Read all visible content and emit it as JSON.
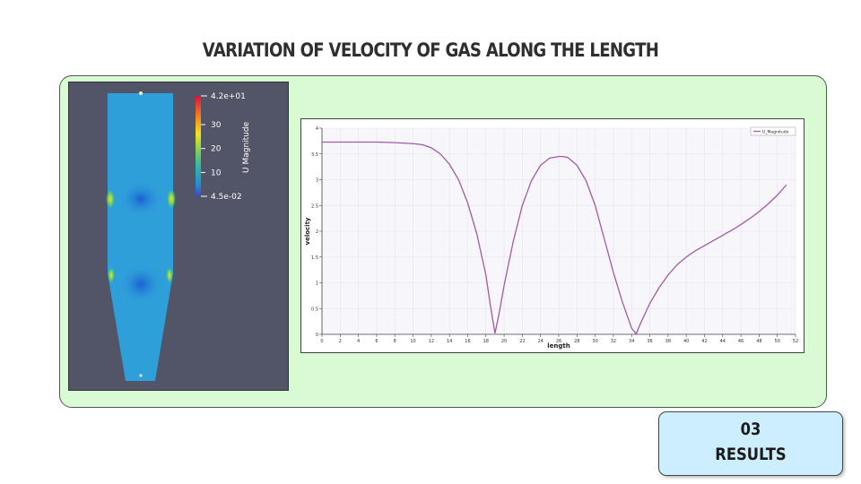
{
  "slide": {
    "title": "VARIATION OF VELOCITY OF GAS ALONG THE LENGTH",
    "section_number": "03",
    "section_label": "RESULTS"
  },
  "colors": {
    "panel_bg": "#d8fbd3",
    "badge_bg": "#cdeefe",
    "sim_bg": "#525468",
    "line": "#a05aa8"
  },
  "colorbar": {
    "title": "U Magnitude",
    "max_label": "4.2e+01",
    "min_label": "4.5e-02",
    "tick_labels": [
      "30",
      "20",
      "10"
    ],
    "tick_values": [
      30,
      20,
      10
    ],
    "min": 0.045,
    "max": 42
  },
  "chart_data": {
    "type": "line",
    "xlabel": "length",
    "ylabel": "velocity",
    "xlim": [
      0,
      52
    ],
    "ylim": [
      0,
      4
    ],
    "x_ticks": [
      0,
      2,
      4,
      6,
      8,
      10,
      12,
      14,
      16,
      18,
      20,
      22,
      24,
      26,
      28,
      30,
      32,
      34,
      36,
      38,
      40,
      42,
      44,
      46,
      48,
      50,
      52
    ],
    "y_ticks": [
      0,
      0.5,
      1,
      1.5,
      2,
      2.5,
      3,
      3.5,
      4
    ],
    "y_tick_labels": [
      "0",
      "0.5",
      "1",
      "1.5",
      "2",
      "2.5",
      "3",
      "3.5",
      "4"
    ],
    "grid": true,
    "legend_position": "top-right",
    "series": [
      {
        "name": "U_Magnitude",
        "x": [
          0,
          2,
          4,
          6,
          8,
          10,
          11,
          12,
          13,
          14,
          15,
          16,
          17,
          18,
          18.5,
          19,
          19.5,
          20,
          21,
          22,
          23,
          24,
          25,
          26,
          26.5,
          27,
          28,
          29,
          30,
          31,
          32,
          33,
          34,
          34.5,
          35,
          36,
          37,
          38,
          39,
          40,
          41,
          42,
          43,
          44,
          45,
          46,
          47,
          48,
          49,
          50,
          51
        ],
        "y": [
          3.73,
          3.73,
          3.73,
          3.73,
          3.72,
          3.7,
          3.68,
          3.62,
          3.5,
          3.3,
          3.0,
          2.55,
          1.95,
          1.15,
          0.55,
          0.02,
          0.45,
          0.95,
          1.8,
          2.5,
          2.98,
          3.28,
          3.42,
          3.45,
          3.45,
          3.43,
          3.28,
          2.98,
          2.5,
          1.85,
          1.2,
          0.62,
          0.12,
          0.01,
          0.22,
          0.6,
          0.9,
          1.15,
          1.35,
          1.5,
          1.62,
          1.72,
          1.82,
          1.92,
          2.02,
          2.13,
          2.25,
          2.38,
          2.53,
          2.7,
          2.9
        ]
      }
    ]
  }
}
